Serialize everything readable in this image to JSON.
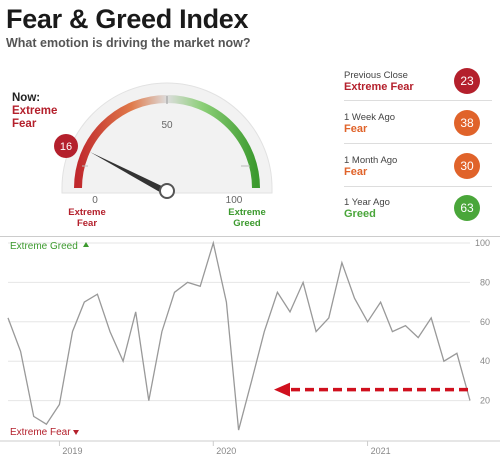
{
  "header": {
    "title": "Fear & Greed Index",
    "subtitle": "What emotion is driving the market now?"
  },
  "now": {
    "label": "Now:",
    "value_line1": "Extreme",
    "value_line2": "Fear"
  },
  "gauge": {
    "value": 16,
    "min_label": "0",
    "mid_label": "50",
    "max_label": "100",
    "left_zone_line1": "Extreme",
    "left_zone_line2": "Fear",
    "right_zone_line1": "Extreme",
    "right_zone_line2": "Greed",
    "fear_color": "#b4202c",
    "greed_color": "#3c9a2e"
  },
  "stats": [
    {
      "label": "Previous Close",
      "value": "Extreme Fear",
      "score": "23",
      "color": "#b4202c"
    },
    {
      "label": "1 Week Ago",
      "value": "Fear",
      "score": "38",
      "color": "#e0632a"
    },
    {
      "label": "1 Month Ago",
      "value": "Fear",
      "score": "30",
      "color": "#e0632a"
    },
    {
      "label": "1 Year Ago",
      "value": "Greed",
      "score": "63",
      "color": "#4aa63a"
    }
  ],
  "chart_data": {
    "type": "line",
    "top_label": "Extreme Greed",
    "bottom_label": "Extreme Fear",
    "y_ticks": [
      "100",
      "80",
      "60",
      "40",
      "20"
    ],
    "ylim": [
      0,
      100
    ],
    "x_ticks": [
      "2019",
      "2020",
      "2021"
    ],
    "x": [
      "2018-09",
      "2018-10",
      "2018-11",
      "2018-12",
      "2019-01",
      "2019-02",
      "2019-03",
      "2019-04",
      "2019-05",
      "2019-06",
      "2019-07",
      "2019-08",
      "2019-09",
      "2019-10",
      "2019-11",
      "2019-12",
      "2020-01",
      "2020-02",
      "2020-03",
      "2020-04",
      "2020-05",
      "2020-06",
      "2020-07",
      "2020-08",
      "2020-09",
      "2020-10",
      "2020-11",
      "2020-12",
      "2021-01",
      "2021-02",
      "2021-03",
      "2021-04",
      "2021-05",
      "2021-06",
      "2021-07",
      "2021-08",
      "2021-09"
    ],
    "series": [
      {
        "values": [
          62,
          45,
          12,
          8,
          18,
          55,
          70,
          74,
          55,
          40,
          65,
          20,
          55,
          75,
          80,
          78,
          100,
          70,
          5,
          30,
          55,
          75,
          65,
          80,
          55,
          62,
          90,
          72,
          60,
          70,
          55,
          58,
          52,
          62,
          40,
          44,
          20
        ]
      }
    ],
    "arrow_color": "#d0101e",
    "line_color": "#999999"
  }
}
